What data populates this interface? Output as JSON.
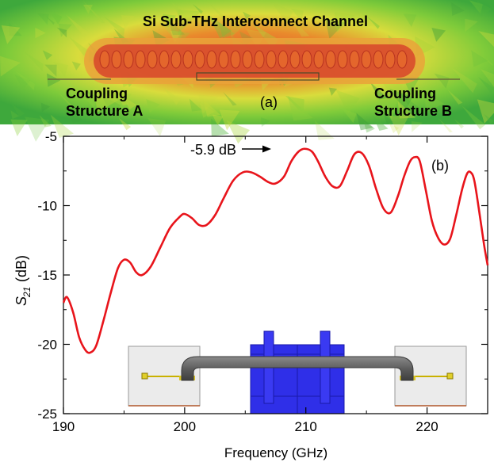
{
  "panel_a": {
    "title": "Si Sub-THz Interconnect Channel",
    "coupling_a_line1": "Coupling",
    "coupling_a_line2": "Structure A",
    "coupling_b_line1": "Coupling",
    "coupling_b_line2": "Structure B",
    "panel_label": "(a)"
  },
  "panel_b": {
    "panel_label": "(b)",
    "annotation": "-5.9 dB"
  },
  "colors": {
    "curve": "#e8141b",
    "field_green": "#5fbf3a",
    "field_yellow": "#d9dc3c",
    "field_orange": "#e98a2c",
    "field_red": "#d9452a",
    "block_blue": "#2f2fe8",
    "waveguide_gray": "#5c5c5c"
  },
  "chart_data": {
    "type": "line",
    "xlabel": "Frequency (GHz)",
    "ylabel_main": "S",
    "ylabel_sub": "21",
    "ylabel_unit": "(dB)",
    "xlim": [
      190,
      225
    ],
    "ylim": [
      -25,
      -5
    ],
    "xticks": [
      190,
      200,
      210,
      220
    ],
    "yticks": [
      -5,
      -10,
      -15,
      -20,
      -25
    ],
    "series": [
      {
        "x": [
          190.0,
          190.3,
          190.8,
          191.3,
          191.8,
          192.2,
          192.7,
          193.3,
          193.9,
          194.5,
          195.0,
          195.5,
          196.0,
          196.5,
          197.2,
          198.0,
          198.8,
          199.6,
          200.0,
          200.6,
          201.2,
          201.8,
          202.5,
          203.2,
          204.0,
          204.8,
          205.5,
          206.2,
          206.9,
          207.5,
          208.2,
          208.8,
          209.4,
          209.9,
          210.5,
          211.0,
          211.6,
          212.2,
          212.8,
          213.4,
          214.0,
          214.6,
          215.2,
          215.8,
          216.4,
          217.0,
          217.6,
          218.1,
          218.6,
          219.0,
          219.4,
          219.9,
          220.4,
          220.9,
          221.4,
          221.9,
          222.4,
          222.9,
          223.3,
          223.6,
          223.9,
          224.3,
          224.7,
          225.0
        ],
        "y": [
          -17.0,
          -16.6,
          -17.7,
          -19.5,
          -20.4,
          -20.6,
          -20.1,
          -18.3,
          -16.3,
          -14.5,
          -13.9,
          -14.1,
          -14.8,
          -15.0,
          -14.4,
          -13.0,
          -11.6,
          -10.8,
          -10.6,
          -10.9,
          -11.4,
          -11.4,
          -10.7,
          -9.5,
          -8.2,
          -7.6,
          -7.6,
          -7.9,
          -8.3,
          -8.4,
          -7.9,
          -6.8,
          -6.1,
          -5.9,
          -6.1,
          -6.8,
          -7.9,
          -8.6,
          -8.6,
          -7.5,
          -6.3,
          -6.2,
          -7.1,
          -8.8,
          -10.2,
          -10.5,
          -9.3,
          -7.9,
          -6.8,
          -6.5,
          -6.8,
          -8.9,
          -11.1,
          -12.3,
          -12.8,
          -12.4,
          -10.7,
          -8.8,
          -7.7,
          -7.6,
          -8.2,
          -10.4,
          -12.8,
          -14.3
        ]
      }
    ]
  }
}
